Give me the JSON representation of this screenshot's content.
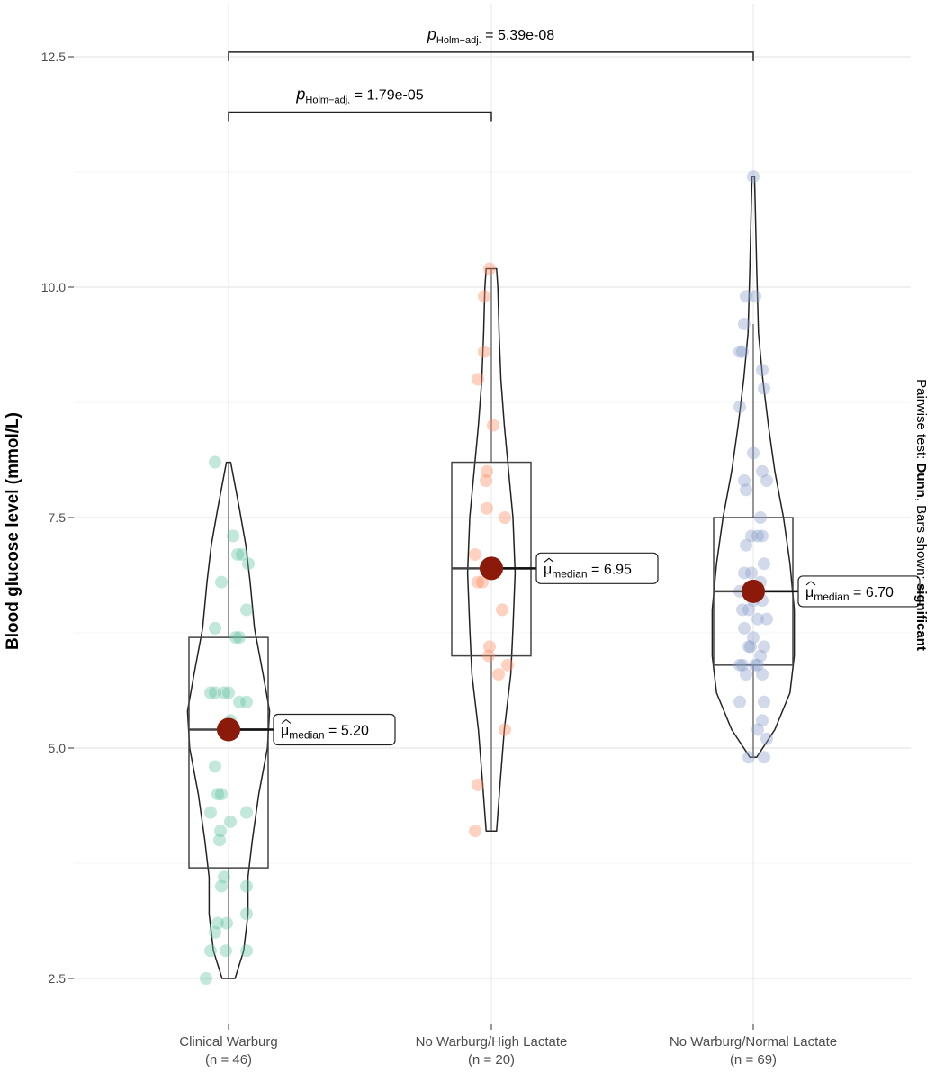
{
  "chart_data": {
    "type": "violin",
    "ylabel": "Blood glucose level (mmol/L)",
    "xlabel": "",
    "ylim": [
      2.25,
      13.0
    ],
    "yticks": [
      2.5,
      5.0,
      7.5,
      10.0,
      12.5
    ],
    "ytick_labels": [
      "2.5",
      "5.0",
      "7.5",
      "10.0",
      "12.5"
    ],
    "grid": true,
    "caption_parts": [
      {
        "text": "Pairwise test: ",
        "bold": false
      },
      {
        "text": "Dunn",
        "bold": true
      },
      {
        "text": ", Bars shown: ",
        "bold": false
      },
      {
        "text": "significant",
        "bold": true
      }
    ],
    "groups": [
      {
        "name": "Clinical Warburg",
        "n_label": "(n = 46)",
        "color": "#66c2a5",
        "q1": 3.7,
        "median": 5.2,
        "q3": 6.2,
        "whisker_low": 2.5,
        "whisker_high": 8.1,
        "median_label": "5.20",
        "violin": [
          [
            2.5,
            0.15
          ],
          [
            2.8,
            0.35
          ],
          [
            3.2,
            0.45
          ],
          [
            3.6,
            0.45
          ],
          [
            4.0,
            0.55
          ],
          [
            4.5,
            0.7
          ],
          [
            5.0,
            0.9
          ],
          [
            5.4,
            0.95
          ],
          [
            5.8,
            0.8
          ],
          [
            6.3,
            0.6
          ],
          [
            6.8,
            0.5
          ],
          [
            7.2,
            0.4
          ],
          [
            7.6,
            0.25
          ],
          [
            8.1,
            0.05
          ]
        ],
        "points": [
          {
            "x": -0.25,
            "y": 2.5
          },
          {
            "x": -0.2,
            "y": 2.8
          },
          {
            "x": -0.03,
            "y": 2.8
          },
          {
            "x": 0.2,
            "y": 2.8
          },
          {
            "x": -0.15,
            "y": 3.0
          },
          {
            "x": -0.12,
            "y": 3.1
          },
          {
            "x": -0.02,
            "y": 3.1
          },
          {
            "x": 0.2,
            "y": 3.2
          },
          {
            "x": -0.08,
            "y": 3.5
          },
          {
            "x": 0.2,
            "y": 3.5
          },
          {
            "x": -0.05,
            "y": 3.6
          },
          {
            "x": -0.1,
            "y": 4.0
          },
          {
            "x": -0.09,
            "y": 4.1
          },
          {
            "x": 0.02,
            "y": 4.2
          },
          {
            "x": 0.2,
            "y": 4.3
          },
          {
            "x": -0.2,
            "y": 4.3
          },
          {
            "x": -0.12,
            "y": 4.5
          },
          {
            "x": -0.08,
            "y": 4.5
          },
          {
            "x": -0.15,
            "y": 4.8
          },
          {
            "x": 0.02,
            "y": 5.3
          },
          {
            "x": 0.12,
            "y": 5.5
          },
          {
            "x": 0.2,
            "y": 5.5
          },
          {
            "x": -0.2,
            "y": 5.6
          },
          {
            "x": -0.15,
            "y": 5.6
          },
          {
            "x": -0.05,
            "y": 5.6
          },
          {
            "x": 0.0,
            "y": 5.6
          },
          {
            "x": 0.12,
            "y": 6.2
          },
          {
            "x": 0.08,
            "y": 6.2
          },
          {
            "x": -0.15,
            "y": 6.3
          },
          {
            "x": 0.2,
            "y": 6.5
          },
          {
            "x": -0.08,
            "y": 6.8
          },
          {
            "x": 0.22,
            "y": 7.0
          },
          {
            "x": 0.1,
            "y": 7.1
          },
          {
            "x": 0.15,
            "y": 7.1
          },
          {
            "x": 0.05,
            "y": 7.3
          },
          {
            "x": -0.15,
            "y": 8.1
          }
        ]
      },
      {
        "name": "No Warburg/High Lactate",
        "n_label": "(n = 20)",
        "color": "#fc8d62",
        "q1": 6.0,
        "median": 6.95,
        "q3": 8.1,
        "whisker_low": 4.1,
        "whisker_high": 10.2,
        "median_label": "6.95",
        "violin": [
          [
            4.1,
            0.12
          ],
          [
            4.6,
            0.2
          ],
          [
            5.2,
            0.3
          ],
          [
            5.8,
            0.45
          ],
          [
            6.3,
            0.5
          ],
          [
            6.9,
            0.55
          ],
          [
            7.5,
            0.5
          ],
          [
            8.0,
            0.4
          ],
          [
            8.5,
            0.3
          ],
          [
            9.0,
            0.22
          ],
          [
            9.5,
            0.18
          ],
          [
            10.0,
            0.15
          ],
          [
            10.2,
            0.12
          ]
        ],
        "points": [
          {
            "x": -0.02,
            "y": 10.2
          },
          {
            "x": -0.08,
            "y": 9.9
          },
          {
            "x": -0.08,
            "y": 9.3
          },
          {
            "x": -0.15,
            "y": 9.0
          },
          {
            "x": 0.02,
            "y": 8.5
          },
          {
            "x": -0.05,
            "y": 8.0
          },
          {
            "x": -0.06,
            "y": 7.9
          },
          {
            "x": -0.05,
            "y": 7.6
          },
          {
            "x": 0.15,
            "y": 7.5
          },
          {
            "x": -0.18,
            "y": 7.1
          },
          {
            "x": -0.15,
            "y": 6.8
          },
          {
            "x": -0.1,
            "y": 6.8
          },
          {
            "x": 0.12,
            "y": 6.5
          },
          {
            "x": -0.02,
            "y": 6.1
          },
          {
            "x": -0.03,
            "y": 6.0
          },
          {
            "x": 0.18,
            "y": 5.9
          },
          {
            "x": 0.08,
            "y": 5.8
          },
          {
            "x": 0.15,
            "y": 5.2
          },
          {
            "x": -0.15,
            "y": 4.6
          },
          {
            "x": -0.18,
            "y": 4.1
          }
        ]
      },
      {
        "name": "No Warburg/Normal Lactate",
        "n_label": "(n = 69)",
        "color": "#8da0cb",
        "q1": 5.9,
        "median": 6.7,
        "q3": 7.5,
        "whisker_low": 4.9,
        "whisker_high": 9.6,
        "median_label": "6.70",
        "violin": [
          [
            4.9,
            0.08
          ],
          [
            5.2,
            0.5
          ],
          [
            5.6,
            0.85
          ],
          [
            6.0,
            0.95
          ],
          [
            6.5,
            0.95
          ],
          [
            7.0,
            0.85
          ],
          [
            7.5,
            0.7
          ],
          [
            8.0,
            0.5
          ],
          [
            8.5,
            0.35
          ],
          [
            9.0,
            0.22
          ],
          [
            9.5,
            0.12
          ],
          [
            10.2,
            0.08
          ],
          [
            10.8,
            0.05
          ],
          [
            11.2,
            0.03
          ]
        ],
        "points": [
          {
            "x": 0.0,
            "y": 11.2
          },
          {
            "x": -0.08,
            "y": 9.9
          },
          {
            "x": 0.02,
            "y": 9.9
          },
          {
            "x": -0.1,
            "y": 9.6
          },
          {
            "x": -0.15,
            "y": 9.3
          },
          {
            "x": -0.12,
            "y": 9.3
          },
          {
            "x": 0.1,
            "y": 9.1
          },
          {
            "x": 0.12,
            "y": 8.9
          },
          {
            "x": -0.15,
            "y": 8.7
          },
          {
            "x": 0.0,
            "y": 8.2
          },
          {
            "x": 0.1,
            "y": 8.0
          },
          {
            "x": 0.15,
            "y": 7.9
          },
          {
            "x": -0.1,
            "y": 7.9
          },
          {
            "x": -0.08,
            "y": 7.8
          },
          {
            "x": 0.08,
            "y": 7.5
          },
          {
            "x": -0.02,
            "y": 7.3
          },
          {
            "x": 0.05,
            "y": 7.3
          },
          {
            "x": 0.1,
            "y": 7.3
          },
          {
            "x": -0.08,
            "y": 7.2
          },
          {
            "x": 0.12,
            "y": 7.0
          },
          {
            "x": -0.1,
            "y": 6.9
          },
          {
            "x": -0.02,
            "y": 6.9
          },
          {
            "x": 0.08,
            "y": 6.8
          },
          {
            "x": -0.15,
            "y": 6.7
          },
          {
            "x": 0.0,
            "y": 6.6
          },
          {
            "x": 0.1,
            "y": 6.6
          },
          {
            "x": -0.12,
            "y": 6.5
          },
          {
            "x": -0.05,
            "y": 6.5
          },
          {
            "x": 0.05,
            "y": 6.4
          },
          {
            "x": 0.15,
            "y": 6.4
          },
          {
            "x": -0.1,
            "y": 6.3
          },
          {
            "x": 0.0,
            "y": 6.2
          },
          {
            "x": -0.05,
            "y": 6.1
          },
          {
            "x": -0.03,
            "y": 6.1
          },
          {
            "x": 0.12,
            "y": 6.1
          },
          {
            "x": 0.08,
            "y": 6.0
          },
          {
            "x": -0.15,
            "y": 5.9
          },
          {
            "x": -0.12,
            "y": 5.9
          },
          {
            "x": 0.02,
            "y": 5.9
          },
          {
            "x": 0.05,
            "y": 5.9
          },
          {
            "x": -0.08,
            "y": 5.8
          },
          {
            "x": 0.1,
            "y": 5.8
          },
          {
            "x": 0.12,
            "y": 5.5
          },
          {
            "x": -0.15,
            "y": 5.5
          },
          {
            "x": 0.1,
            "y": 5.3
          },
          {
            "x": 0.05,
            "y": 5.2
          },
          {
            "x": 0.15,
            "y": 5.1
          },
          {
            "x": -0.05,
            "y": 4.9
          },
          {
            "x": 0.12,
            "y": 4.9
          }
        ]
      }
    ],
    "comparisons": [
      {
        "from": 0,
        "to": 1,
        "y": 11.9,
        "label_prefix": "p",
        "label_sub": "Holm−adj.",
        "label_value": " = 1.79e-05"
      },
      {
        "from": 0,
        "to": 2,
        "y": 12.55,
        "label_prefix": "p",
        "label_sub": "Holm−adj.",
        "label_value": " = 5.39e-08"
      }
    ],
    "median_point_color": "#8b1a0a",
    "median_prefix": "μ",
    "median_sub": "median",
    "median_eq": " = "
  }
}
